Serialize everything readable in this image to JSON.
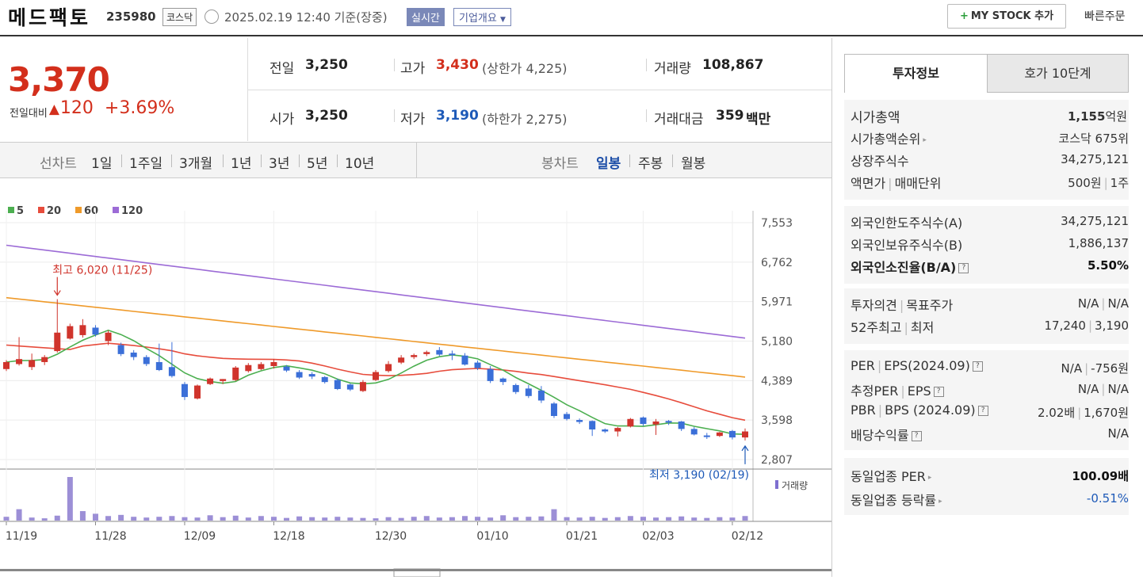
{
  "header": {
    "name": "메드팩토",
    "code": "235980",
    "market": "코스닥",
    "datetime": "2025.02.19 12:40 기준(장중)",
    "realtime": "실시간",
    "company": "기업개요",
    "company_arrow": "▼",
    "mystock_plus": "+",
    "mystock": "MY STOCK 추가",
    "quick": "빠른주문"
  },
  "price": {
    "current": "3,370",
    "compare_label": "전일대비",
    "arrow": "▲",
    "change": "120",
    "rate": "+3.69%"
  },
  "quotes": {
    "prev": {
      "label": "전일",
      "value": "3,250"
    },
    "high": {
      "label": "고가",
      "value": "3,430",
      "sub": "(상한가 4,225)"
    },
    "volume": {
      "label": "거래량",
      "value": "108,867"
    },
    "open": {
      "label": "시가",
      "value": "3,250"
    },
    "low": {
      "label": "저가",
      "value": "3,190",
      "sub": "(하한가 2,275)"
    },
    "amount": {
      "label": "거래대금",
      "value": "359",
      "unit": "백만"
    }
  },
  "tabs": {
    "line_label": "선차트",
    "periods": [
      "1일",
      "1주일",
      "3개월",
      "1년",
      "3년",
      "5년",
      "10년"
    ],
    "candle_label": "봉차트",
    "candle": [
      "일봉",
      "주봉",
      "월봉"
    ]
  },
  "chart_data": {
    "type": "candlestick",
    "legend": [
      {
        "name": "5",
        "color": "#4caf50"
      },
      {
        "name": "20",
        "color": "#e74c3c"
      },
      {
        "name": "60",
        "color": "#ef9a2a"
      },
      {
        "name": "120",
        "color": "#9c6bd6"
      }
    ],
    "y_ticks": [
      "7,553",
      "6,762",
      "5,971",
      "5,180",
      "4,389",
      "3,598",
      "2,807"
    ],
    "ylim": [
      2807,
      7553
    ],
    "x_labels": [
      "11/19",
      "11/28",
      "12/09",
      "12/18",
      "12/30",
      "01/10",
      "01/21",
      "02/03",
      "02/12"
    ],
    "high_annotation": "최고 6,020 (11/25)",
    "low_annotation": "최저 3,190 (02/19)",
    "volume_label": "거래량",
    "candles": [
      {
        "o": 4620,
        "c": 4760,
        "h": 4800,
        "l": 4580
      },
      {
        "o": 4720,
        "c": 4820,
        "h": 5260,
        "l": 4690
      },
      {
        "o": 4660,
        "c": 4800,
        "h": 4930,
        "l": 4600
      },
      {
        "o": 4760,
        "c": 4860,
        "h": 4900,
        "l": 4700
      },
      {
        "o": 4980,
        "c": 5350,
        "h": 6020,
        "l": 4950
      },
      {
        "o": 5230,
        "c": 5480,
        "h": 5530,
        "l": 5210
      },
      {
        "o": 5300,
        "c": 5500,
        "h": 5620,
        "l": 5250
      },
      {
        "o": 5450,
        "c": 5310,
        "h": 5500,
        "l": 5270
      },
      {
        "o": 5180,
        "c": 5350,
        "h": 5390,
        "l": 5100
      },
      {
        "o": 5100,
        "c": 4920,
        "h": 5150,
        "l": 4880
      },
      {
        "o": 4950,
        "c": 4860,
        "h": 5000,
        "l": 4800
      },
      {
        "o": 4860,
        "c": 4720,
        "h": 4900,
        "l": 4680
      },
      {
        "o": 4760,
        "c": 4600,
        "h": 5130,
        "l": 4580
      },
      {
        "o": 4660,
        "c": 4480,
        "h": 5160,
        "l": 4450
      },
      {
        "o": 4320,
        "c": 4060,
        "h": 4360,
        "l": 4000
      },
      {
        "o": 4030,
        "c": 4290,
        "h": 4310,
        "l": 4010
      },
      {
        "o": 4320,
        "c": 4430,
        "h": 4450,
        "l": 4300
      },
      {
        "o": 4380,
        "c": 4420,
        "h": 4420,
        "l": 4320
      },
      {
        "o": 4400,
        "c": 4650,
        "h": 4680,
        "l": 4380
      },
      {
        "o": 4580,
        "c": 4700,
        "h": 4740,
        "l": 4550
      },
      {
        "o": 4620,
        "c": 4720,
        "h": 4760,
        "l": 4600
      },
      {
        "o": 4680,
        "c": 4760,
        "h": 4820,
        "l": 4630
      },
      {
        "o": 4670,
        "c": 4590,
        "h": 4700,
        "l": 4560
      },
      {
        "o": 4560,
        "c": 4450,
        "h": 4600,
        "l": 4420
      },
      {
        "o": 4520,
        "c": 4470,
        "h": 4560,
        "l": 4420
      },
      {
        "o": 4460,
        "c": 4360,
        "h": 4480,
        "l": 4330
      },
      {
        "o": 4400,
        "c": 4220,
        "h": 4430,
        "l": 4200
      },
      {
        "o": 4310,
        "c": 4210,
        "h": 4330,
        "l": 4180
      },
      {
        "o": 4180,
        "c": 4360,
        "h": 4400,
        "l": 4160
      },
      {
        "o": 4400,
        "c": 4560,
        "h": 4600,
        "l": 4380
      },
      {
        "o": 4580,
        "c": 4720,
        "h": 4780,
        "l": 4550
      },
      {
        "o": 4750,
        "c": 4850,
        "h": 4900,
        "l": 4720
      },
      {
        "o": 4860,
        "c": 4900,
        "h": 4930,
        "l": 4820
      },
      {
        "o": 4920,
        "c": 4960,
        "h": 4990,
        "l": 4880
      },
      {
        "o": 5000,
        "c": 4910,
        "h": 5060,
        "l": 4880
      },
      {
        "o": 4930,
        "c": 4900,
        "h": 4990,
        "l": 4800
      },
      {
        "o": 4890,
        "c": 4710,
        "h": 4940,
        "l": 4690
      },
      {
        "o": 4750,
        "c": 4640,
        "h": 4790,
        "l": 4600
      },
      {
        "o": 4620,
        "c": 4380,
        "h": 4680,
        "l": 4340
      },
      {
        "o": 4430,
        "c": 4360,
        "h": 4450,
        "l": 4300
      },
      {
        "o": 4300,
        "c": 4160,
        "h": 4330,
        "l": 4120
      },
      {
        "o": 4230,
        "c": 4080,
        "h": 4300,
        "l": 4040
      },
      {
        "o": 4190,
        "c": 3990,
        "h": 4280,
        "l": 3940
      },
      {
        "o": 3930,
        "c": 3680,
        "h": 3960,
        "l": 3640
      },
      {
        "o": 3720,
        "c": 3620,
        "h": 3760,
        "l": 3590
      },
      {
        "o": 3600,
        "c": 3560,
        "h": 3630,
        "l": 3520
      },
      {
        "o": 3580,
        "c": 3410,
        "h": 3590,
        "l": 3280
      },
      {
        "o": 3410,
        "c": 3370,
        "h": 3430,
        "l": 3340
      },
      {
        "o": 3370,
        "c": 3440,
        "h": 3460,
        "l": 3270
      },
      {
        "o": 3470,
        "c": 3620,
        "h": 3640,
        "l": 3450
      },
      {
        "o": 3650,
        "c": 3520,
        "h": 3670,
        "l": 3480
      },
      {
        "o": 3510,
        "c": 3570,
        "h": 3620,
        "l": 3300
      },
      {
        "o": 3580,
        "c": 3550,
        "h": 3600,
        "l": 3500
      },
      {
        "o": 3570,
        "c": 3420,
        "h": 3580,
        "l": 3380
      },
      {
        "o": 3420,
        "c": 3310,
        "h": 3460,
        "l": 3290
      },
      {
        "o": 3290,
        "c": 3280,
        "h": 3340,
        "l": 3220
      },
      {
        "o": 3280,
        "c": 3350,
        "h": 3360,
        "l": 3260
      },
      {
        "o": 3380,
        "c": 3250,
        "h": 3400,
        "l": 3210
      },
      {
        "o": 3250,
        "c": 3370,
        "h": 3430,
        "l": 3190
      }
    ],
    "volumes": [
      10,
      30,
      8,
      6,
      13,
      115,
      25,
      18,
      12,
      15,
      10,
      8,
      10,
      12,
      9,
      8,
      14,
      9,
      13,
      8,
      12,
      10,
      7,
      11,
      9,
      8,
      10,
      8,
      7,
      6,
      9,
      7,
      10,
      12,
      8,
      9,
      12,
      10,
      8,
      14,
      9,
      10,
      11,
      30,
      9,
      8,
      10,
      7,
      9,
      12,
      10,
      8,
      9,
      11,
      8,
      7,
      9,
      8,
      12
    ]
  },
  "side": {
    "tab_active": "투자정보",
    "tab_other": "호가 10단계",
    "market_cap": {
      "label": "시가총액",
      "value": "1,155",
      "unit": "억원"
    },
    "cap_rank": {
      "label": "시가총액순위",
      "value": "코스닥 675위"
    },
    "shares": {
      "label": "상장주식수",
      "value": "34,275,121"
    },
    "par": {
      "label": "액면가",
      "label2": "매매단위",
      "value": "500원",
      "value2": "1주"
    },
    "foreign_limit": {
      "label": "외국인한도주식수(A)",
      "value": "34,275,121"
    },
    "foreign_hold": {
      "label": "외국인보유주식수(B)",
      "value": "1,886,137"
    },
    "foreign_rate": {
      "label": "외국인소진율(B/A)",
      "value": "5.50%"
    },
    "opinion": {
      "label": "투자의견",
      "label2": "목표주가",
      "value": "N/A",
      "value2": "N/A"
    },
    "w52": {
      "label": "52주최고",
      "label2": "최저",
      "value": "17,240",
      "value2": "3,190"
    },
    "per": {
      "label": "PER",
      "label2": "EPS(2024.09)",
      "value": "N/A",
      "value2": "-756원"
    },
    "est": {
      "label": "추정PER",
      "label2": "EPS",
      "value": "N/A",
      "value2": "N/A"
    },
    "pbr": {
      "label": "PBR",
      "label2": "BPS (2024.09)",
      "value": "2.02배",
      "value2": "1,670원"
    },
    "div": {
      "label": "배당수익률",
      "value": "N/A"
    },
    "ind_per": {
      "label": "동일업종 PER",
      "value": "100.09배"
    },
    "ind_rate": {
      "label": "동일업종 등락률",
      "value": "-0.51%"
    }
  }
}
